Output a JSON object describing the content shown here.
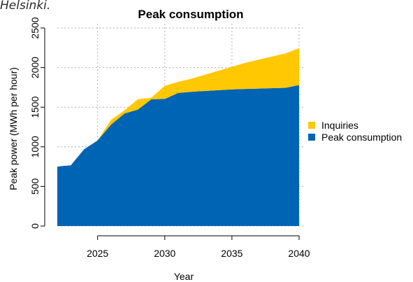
{
  "caption_fragment": "Helsinki.",
  "chart_data": {
    "type": "area",
    "stacked": true,
    "title": "Peak consumption",
    "xlabel": "Year",
    "ylabel": "Peak power (MWh per hour)",
    "xlim": [
      2022,
      2040
    ],
    "ylim": [
      0,
      2500
    ],
    "xticks": [
      2025,
      2030,
      2035,
      2040
    ],
    "yticks": [
      0,
      500,
      1000,
      1500,
      2000,
      2500
    ],
    "grid": true,
    "legend_position": "right",
    "x": [
      2022,
      2022.5,
      2023,
      2024,
      2025,
      2026,
      2027,
      2028,
      2029,
      2030,
      2031,
      2032,
      2033,
      2034,
      2035,
      2036,
      2037,
      2038,
      2039,
      2040
    ],
    "series": [
      {
        "name": "Peak consumption",
        "color": "#0064b4",
        "values": [
          750,
          760,
          765,
          970,
          1080,
          1280,
          1420,
          1470,
          1600,
          1605,
          1680,
          1695,
          1705,
          1715,
          1725,
          1730,
          1735,
          1740,
          1745,
          1780
        ]
      },
      {
        "name": "Inquiries",
        "color": "#ffc800",
        "values": [
          0,
          0,
          0,
          0,
          0,
          60,
          40,
          130,
          20,
          165,
          140,
          165,
          205,
          245,
          285,
          330,
          365,
          400,
          435,
          465
        ]
      }
    ]
  }
}
